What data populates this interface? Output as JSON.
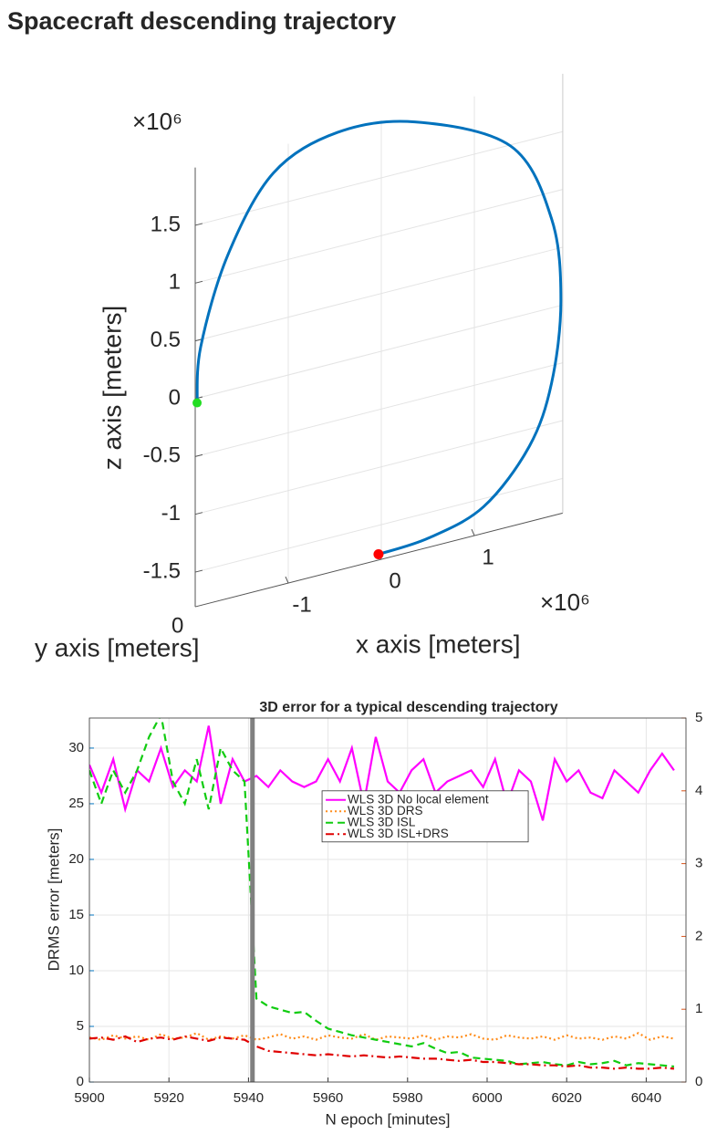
{
  "chart_data": [
    {
      "type": "line3d",
      "title": "Spacecraft descending trajectory",
      "xlabel": "x axis [meters]",
      "ylabel": "y axis [meters]",
      "zlabel": "z axis [meters]",
      "x_exponent_label": "×10⁶",
      "z_exponent_label": "×10⁶",
      "xlim": [
        -2,
        1.95
      ],
      "zlim": [
        -1.8,
        2.0
      ],
      "xticks": [
        -1,
        0,
        1
      ],
      "yticks": [
        0
      ],
      "zticks": [
        -1.5,
        -1,
        -0.5,
        0,
        0.5,
        1,
        1.5
      ],
      "grid": true,
      "color": "#0072bd",
      "start_color": "#22dd22",
      "end_color": "#ff0000",
      "x": [
        -1.98,
        -1.94,
        -1.65,
        -1.16,
        -0.47,
        0.36,
        1.39,
        1.83,
        1.93,
        1.83,
        1.59,
        1.1,
        0.51,
        -0.03
      ],
      "z": [
        -0.04,
        0.44,
        1.17,
        1.78,
        1.99,
        1.91,
        1.49,
        0.77,
        0.04,
        -0.65,
        -1.15,
        -1.57,
        -1.72,
        -1.75
      ]
    },
    {
      "type": "line",
      "title": "3D error for a  typical descending trajectory",
      "xlabel": "N epoch [minutes]",
      "ylabel": "DRMS error [meters]",
      "xlim": [
        5900,
        6050
      ],
      "ylim": [
        0,
        32.7
      ],
      "y2lim": [
        0,
        5
      ],
      "xticks": [
        5900,
        5920,
        5940,
        5960,
        5980,
        6000,
        6020,
        6040
      ],
      "yticks": [
        0,
        5,
        10,
        15,
        20,
        25,
        30
      ],
      "y2ticks": [
        0,
        1,
        2,
        3,
        4,
        5
      ],
      "y_color": "#0072bd",
      "y2_color": "#d95319",
      "grid": true,
      "legend_loc": "center",
      "vline": {
        "x": 5941,
        "color": "#808080"
      },
      "x": [
        5900,
        5903,
        5906,
        5909,
        5912,
        5915,
        5918,
        5921,
        5924,
        5927,
        5930,
        5933,
        5936,
        5939,
        5942,
        5945,
        5948,
        5951,
        5954,
        5957,
        5960,
        5963,
        5966,
        5969,
        5972,
        5975,
        5978,
        5981,
        5984,
        5987,
        5990,
        5993,
        5996,
        5999,
        6002,
        6005,
        6008,
        6011,
        6014,
        6017,
        6020,
        6023,
        6026,
        6029,
        6032,
        6035,
        6038,
        6041,
        6044,
        6047
      ],
      "series": [
        {
          "name": "WLS 3D No local element",
          "color": "#ff00ff",
          "style": "solid",
          "values": [
            28.5,
            26,
            29,
            24.5,
            28,
            27,
            30,
            26.5,
            28,
            27,
            32,
            25,
            29,
            27,
            27.5,
            26.5,
            28,
            27,
            26.5,
            27,
            29,
            27,
            30,
            25,
            31,
            27,
            26,
            28,
            29,
            26,
            27,
            27.5,
            28,
            26.5,
            29,
            25,
            28,
            27,
            23.5,
            29,
            27,
            28,
            26,
            25.5,
            28,
            27,
            26,
            28,
            29.5,
            28
          ]
        },
        {
          "name": "WLS 3D DRS",
          "color": "#ff8c1a",
          "style": "dotted",
          "values": [
            4,
            3.8,
            4.2,
            3.9,
            4.1,
            3.8,
            4.3,
            3.9,
            4,
            4.4,
            3.8,
            4.1,
            3.9,
            4.2,
            3.8,
            4,
            4.3,
            3.9,
            4.1,
            3.8,
            4.2,
            4,
            3.9,
            4.3,
            3.8,
            4.1,
            4,
            3.9,
            4.2,
            3.8,
            4.1,
            4,
            4.3,
            3.9,
            3.8,
            4.2,
            4,
            3.9,
            4.1,
            3.8,
            4.2,
            3.9,
            4,
            3.8,
            4.1,
            3.9,
            4.4,
            3.8,
            4.1,
            3.9
          ]
        },
        {
          "name": "WLS 3D ISL",
          "color": "#11cc11",
          "style": "dashed",
          "values": [
            28,
            25,
            28,
            26,
            28,
            31,
            33,
            27,
            25,
            29,
            24.5,
            30,
            28,
            27,
            7.5,
            6.8,
            6.5,
            6.2,
            6.3,
            5.5,
            4.8,
            4.5,
            4.2,
            4,
            3.8,
            3.6,
            3.4,
            3.2,
            3.5,
            3,
            2.6,
            2.7,
            2.2,
            2.1,
            2,
            1.9,
            1.6,
            1.7,
            1.8,
            1.6,
            1.5,
            1.8,
            1.6,
            1.7,
            1.9,
            1.5,
            1.7,
            1.6,
            1.5,
            1.4
          ]
        },
        {
          "name": "WLS 3D ISL+DRS",
          "color": "#e00000",
          "style": "dashdot",
          "values": [
            3.9,
            4,
            3.8,
            4.1,
            3.6,
            3.9,
            4,
            3.8,
            4.1,
            3.9,
            3.7,
            4,
            3.9,
            3.8,
            3.2,
            2.8,
            2.7,
            2.6,
            2.5,
            2.4,
            2.5,
            2.4,
            2.3,
            2.4,
            2.3,
            2.2,
            2.3,
            2.2,
            2.1,
            2.1,
            2,
            1.9,
            2,
            1.8,
            1.8,
            1.7,
            1.6,
            1.6,
            1.5,
            1.5,
            1.4,
            1.5,
            1.3,
            1.3,
            1.2,
            1.3,
            1.2,
            1.2,
            1.3,
            1.2
          ]
        }
      ]
    }
  ]
}
